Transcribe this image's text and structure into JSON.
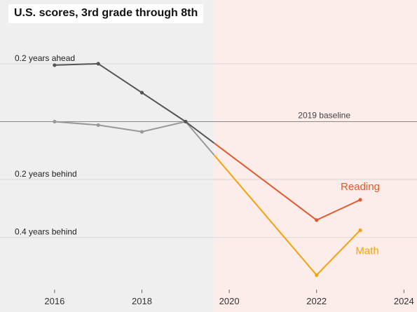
{
  "chart_data": {
    "type": "line",
    "title": "U.S. scores, 3rd grade through 8th",
    "xlim": [
      2014.75,
      2024.3
    ],
    "ylim": [
      -0.58,
      0.42
    ],
    "x_ticks": [
      {
        "value": 2016,
        "label": "2016"
      },
      {
        "value": 2018,
        "label": "2018"
      },
      {
        "value": 2020,
        "label": "2020"
      },
      {
        "value": 2022,
        "label": "2022"
      },
      {
        "value": 2024,
        "label": "2024"
      }
    ],
    "y_ticks": [
      {
        "value": 0.2,
        "label": "0.2 years ahead"
      },
      {
        "value": -0.2,
        "label": "0.2 years behind"
      },
      {
        "value": -0.4,
        "label": "0.4 years behind"
      }
    ],
    "baseline": {
      "value": 0,
      "label": "2019 baseline"
    },
    "pandemic_start": 2019.65,
    "series": [
      {
        "name": "Reading",
        "pre_color": "#555555",
        "color": "#e05a2b",
        "x": [
          2016,
          2017,
          2018,
          2019,
          2022,
          2023
        ],
        "y": [
          0.195,
          0.2,
          0.1,
          0.0,
          -0.34,
          -0.27
        ]
      },
      {
        "name": "Math",
        "pre_color": "#999999",
        "color": "#f5a30a",
        "x": [
          2016,
          2017,
          2018,
          2019,
          2022,
          2023
        ],
        "y": [
          0.0,
          -0.012,
          -0.035,
          0.0,
          -0.53,
          -0.375
        ]
      }
    ]
  }
}
